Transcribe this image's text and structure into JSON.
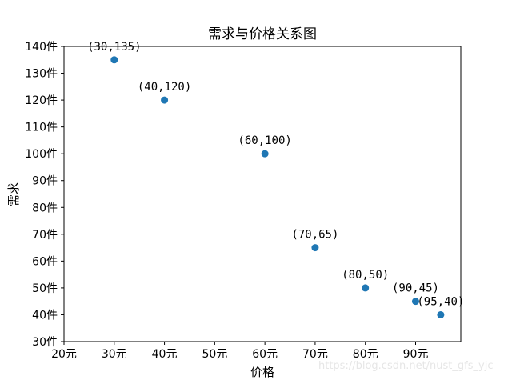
{
  "chart_data": {
    "type": "scatter",
    "title": "需求与价格关系图",
    "xlabel": "价格",
    "ylabel": "需求",
    "xlim": [
      20,
      99
    ],
    "ylim": [
      30,
      140
    ],
    "grid": false,
    "marker_color": "#1f77b4",
    "x_ticks": [
      {
        "value": 20,
        "label": "20元"
      },
      {
        "value": 30,
        "label": "30元"
      },
      {
        "value": 40,
        "label": "40元"
      },
      {
        "value": 50,
        "label": "50元"
      },
      {
        "value": 60,
        "label": "60元"
      },
      {
        "value": 70,
        "label": "70元"
      },
      {
        "value": 80,
        "label": "80元"
      },
      {
        "value": 90,
        "label": "90元"
      }
    ],
    "y_ticks": [
      {
        "value": 30,
        "label": "30件"
      },
      {
        "value": 40,
        "label": "40件"
      },
      {
        "value": 50,
        "label": "50件"
      },
      {
        "value": 60,
        "label": "60件"
      },
      {
        "value": 70,
        "label": "70件"
      },
      {
        "value": 80,
        "label": "80件"
      },
      {
        "value": 90,
        "label": "90件"
      },
      {
        "value": 100,
        "label": "100件"
      },
      {
        "value": 110,
        "label": "110件"
      },
      {
        "value": 120,
        "label": "120件"
      },
      {
        "value": 130,
        "label": "130件"
      },
      {
        "value": 140,
        "label": "140件"
      }
    ],
    "points": [
      {
        "x": 30,
        "y": 135,
        "label": "(30,135)"
      },
      {
        "x": 40,
        "y": 120,
        "label": "(40,120)"
      },
      {
        "x": 60,
        "y": 100,
        "label": "(60,100)"
      },
      {
        "x": 70,
        "y": 65,
        "label": "(70,65)"
      },
      {
        "x": 80,
        "y": 50,
        "label": "(80,50)"
      },
      {
        "x": 90,
        "y": 45,
        "label": "(90,45)"
      },
      {
        "x": 95,
        "y": 40,
        "label": "(95,40)"
      }
    ]
  },
  "watermark": "https://blog.csdn.net/nust_gfs_yjc"
}
